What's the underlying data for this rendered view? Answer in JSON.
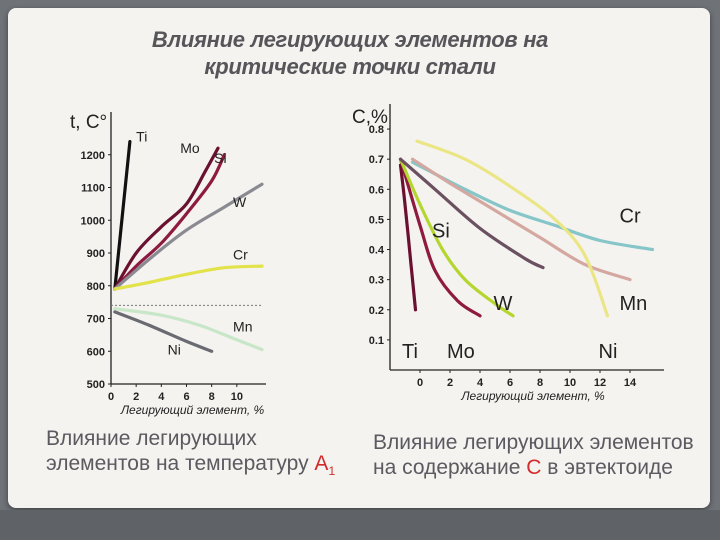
{
  "title": {
    "line1": "Влияние легирующих элементов на",
    "line2": "критические точки стали"
  },
  "chart_data": [
    {
      "type": "line",
      "ylabel": "t, C°",
      "xlabel": "Легирующий элемент, %",
      "xlim": [
        0,
        12
      ],
      "ylim": [
        500,
        1300
      ],
      "xticks": [
        0,
        2,
        4,
        6,
        8,
        10
      ],
      "yticks": [
        500,
        600,
        700,
        800,
        900,
        1000,
        1100,
        1200
      ],
      "reference_line": 740,
      "series": [
        {
          "name": "Ti",
          "color": "#111111",
          "points": [
            [
              0.3,
              790
            ],
            [
              1.5,
              1240
            ]
          ]
        },
        {
          "name": "Mo",
          "color": "#6a1030",
          "points": [
            [
              0.3,
              790
            ],
            [
              2,
              900
            ],
            [
              4,
              980
            ],
            [
              6,
              1050
            ],
            [
              7.5,
              1150
            ],
            [
              8.5,
              1220
            ]
          ]
        },
        {
          "name": "Si",
          "color": "#8e1a40",
          "points": [
            [
              0.3,
              790
            ],
            [
              2,
              860
            ],
            [
              4,
              930
            ],
            [
              6,
              1020
            ],
            [
              8,
              1120
            ],
            [
              9,
              1200
            ]
          ]
        },
        {
          "name": "W",
          "color": "#8a8a92",
          "points": [
            [
              0.3,
              790
            ],
            [
              3,
              880
            ],
            [
              6,
              970
            ],
            [
              9,
              1040
            ],
            [
              12,
              1110
            ]
          ]
        },
        {
          "name": "Cr",
          "color": "#e2e24a",
          "points": [
            [
              0.3,
              790
            ],
            [
              3,
              810
            ],
            [
              6,
              835
            ],
            [
              9,
              855
            ],
            [
              12,
              860
            ]
          ]
        },
        {
          "name": "Mn",
          "color": "#c8e6c8",
          "points": [
            [
              0.3,
              730
            ],
            [
              4,
              710
            ],
            [
              7,
              680
            ],
            [
              10,
              635
            ],
            [
              12,
              605
            ]
          ]
        },
        {
          "name": "Ni",
          "color": "#6a6a72",
          "points": [
            [
              0.3,
              720
            ],
            [
              3,
              680
            ],
            [
              6,
              630
            ],
            [
              8,
              600
            ]
          ]
        }
      ]
    },
    {
      "type": "line",
      "ylabel": "C,%",
      "xlabel": "Легирующий элемент, %",
      "xlim": [
        -2,
        16
      ],
      "ylim": [
        0,
        0.85
      ],
      "xticks": [
        0,
        2,
        4,
        6,
        8,
        10,
        12,
        14
      ],
      "yticks": [
        0.1,
        0.2,
        0.3,
        0.4,
        0.5,
        0.6,
        0.7,
        0.8
      ],
      "series": [
        {
          "name": "Ti",
          "color": "#6a1030",
          "points": [
            [
              -1.3,
              0.68
            ],
            [
              -1,
              0.55
            ],
            [
              -0.6,
              0.35
            ],
            [
              -0.3,
              0.2
            ]
          ]
        },
        {
          "name": "Mo",
          "color": "#8e1a40",
          "points": [
            [
              -1.3,
              0.7
            ],
            [
              0,
              0.48
            ],
            [
              1,
              0.33
            ],
            [
              2.5,
              0.23
            ],
            [
              4,
              0.18
            ]
          ]
        },
        {
          "name": "W",
          "color": "#b5d62e",
          "points": [
            [
              -1.3,
              0.7
            ],
            [
              0,
              0.55
            ],
            [
              1.5,
              0.4
            ],
            [
              3,
              0.3
            ],
            [
              5,
              0.22
            ],
            [
              6.2,
              0.18
            ]
          ]
        },
        {
          "name": "Si",
          "color": "#6a5060",
          "points": [
            [
              -1.3,
              0.7
            ],
            [
              1,
              0.6
            ],
            [
              4,
              0.47
            ],
            [
              7,
              0.37
            ],
            [
              8.2,
              0.34
            ]
          ]
        },
        {
          "name": "Cr",
          "color": "#86c5c8",
          "points": [
            [
              -0.5,
              0.69
            ],
            [
              3,
              0.6
            ],
            [
              6,
              0.53
            ],
            [
              9,
              0.48
            ],
            [
              12,
              0.43
            ],
            [
              15.5,
              0.4
            ]
          ]
        },
        {
          "name": "Mn",
          "color": "#d4a8a0",
          "points": [
            [
              -0.5,
              0.7
            ],
            [
              2,
              0.62
            ],
            [
              5,
              0.53
            ],
            [
              8,
              0.44
            ],
            [
              11,
              0.35
            ],
            [
              14,
              0.3
            ]
          ]
        },
        {
          "name": "Ni",
          "color": "#ebe685",
          "points": [
            [
              -0.2,
              0.76
            ],
            [
              3,
              0.7
            ],
            [
              6,
              0.61
            ],
            [
              9,
              0.5
            ],
            [
              11,
              0.38
            ],
            [
              12.5,
              0.18
            ]
          ]
        }
      ]
    }
  ],
  "captions": {
    "left_line1": "Влияние легирующих",
    "left_line2": "элементов на температуру",
    "left_highlight": "А",
    "left_sub": "1",
    "right_line1": "Влияние легирующих элементов",
    "right_line2_pre": "на содержание",
    "right_highlight": "С",
    "right_line2_post": "в эвтектоиде"
  }
}
